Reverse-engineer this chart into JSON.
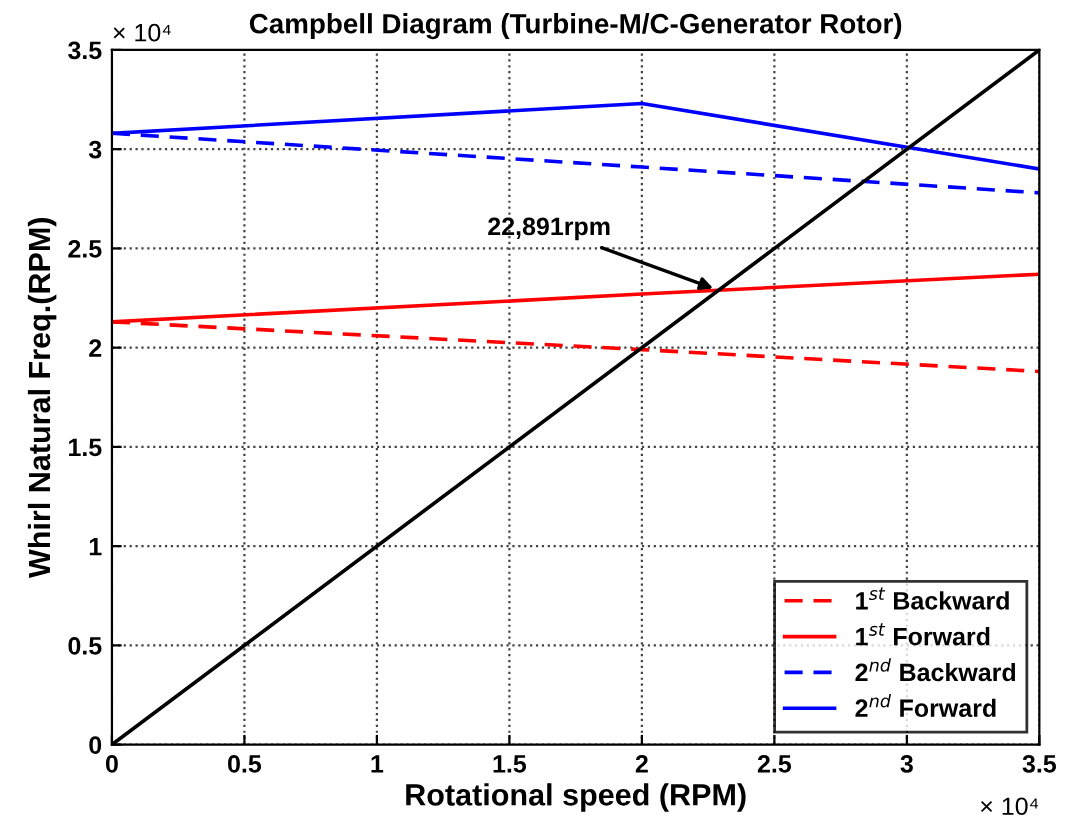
{
  "chart_data": {
    "type": "line",
    "title": "Campbell Diagram (Turbine-M/C-Generator Rotor)",
    "xlabel": "Rotational speed (RPM)",
    "ylabel": "Whirl Natural Freq.(RPM)",
    "x": [
      0,
      2,
      3.5
    ],
    "series": [
      {
        "name": "1$^{st}$ Backward",
        "color": "#ff0000",
        "line_style": "dashed",
        "values": [
          2.13,
          1.99,
          1.88
        ]
      },
      {
        "name": "1$^{st}$ Forward",
        "color": "#ff0000",
        "line_style": "solid",
        "values": [
          2.13,
          2.27,
          2.37
        ]
      },
      {
        "name": "2$^{nd}$ Backward",
        "color": "#0000ff",
        "line_style": "dashed",
        "values": [
          3.08,
          2.91,
          2.78
        ]
      },
      {
        "name": "2$^{nd}$ Forward",
        "color": "#0000ff",
        "line_style": "solid",
        "values": [
          3.08,
          3.23,
          2.9
        ]
      },
      {
        "color": "#000000",
        "line_style": "solid",
        "x": [
          0,
          3.5
        ],
        "values": [
          0,
          3.5
        ]
      }
    ],
    "annotations": [
      {
        "text": "22,891rpm",
        "x": 2.2891,
        "y": 2.2891
      },
      "× 10⁴",
      "× 10⁴"
    ],
    "xlim": [
      0,
      3.5
    ],
    "ylim": [
      0,
      3.5
    ],
    "xticks": [
      0,
      0.5,
      1,
      1.5,
      2,
      2.5,
      3,
      3.5
    ],
    "yticks": [
      0,
      0.5,
      1,
      1.5,
      2,
      2.5,
      3,
      3.5
    ],
    "grid": true,
    "legend": "bottom right",
    "marker": "none"
  }
}
